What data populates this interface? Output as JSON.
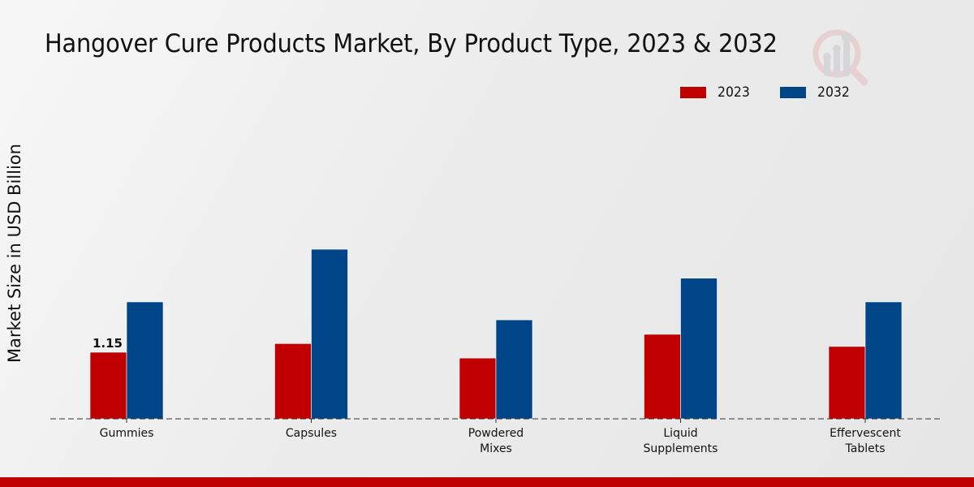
{
  "chart_data": {
    "type": "bar",
    "title": "Hangover Cure Products Market, By Product Type, 2023 & 2032",
    "xlabel": "",
    "ylabel": "Market Size in USD Billion",
    "categories": [
      [
        "Gummies"
      ],
      [
        "Capsules"
      ],
      [
        "Powdered",
        "Mixes"
      ],
      [
        "Liquid",
        "Supplements"
      ],
      [
        "Effervescent",
        "Tablets"
      ]
    ],
    "category_names": [
      "Gummies",
      "Capsules",
      "Powdered Mixes",
      "Liquid Supplements",
      "Effervescent Tablets"
    ],
    "series": [
      {
        "name": "2023",
        "color": "#c00000",
        "values": [
          1.15,
          1.3,
          1.05,
          1.46,
          1.25
        ]
      },
      {
        "name": "2032",
        "color": "#004587",
        "values": [
          2.02,
          2.93,
          1.71,
          2.43,
          2.02
        ]
      }
    ],
    "data_labels": [
      {
        "series": 0,
        "category": 0,
        "text": "1.15"
      }
    ],
    "ylim": [
      0,
      4.4
    ],
    "grid": false,
    "yaxis_ticks_visible": false,
    "legend_position": "top-right"
  },
  "colors": {
    "accent": "#c00000",
    "secondary": "#004587"
  },
  "branding": {
    "logo_icon": "magnifier-chart-logo-icon"
  }
}
